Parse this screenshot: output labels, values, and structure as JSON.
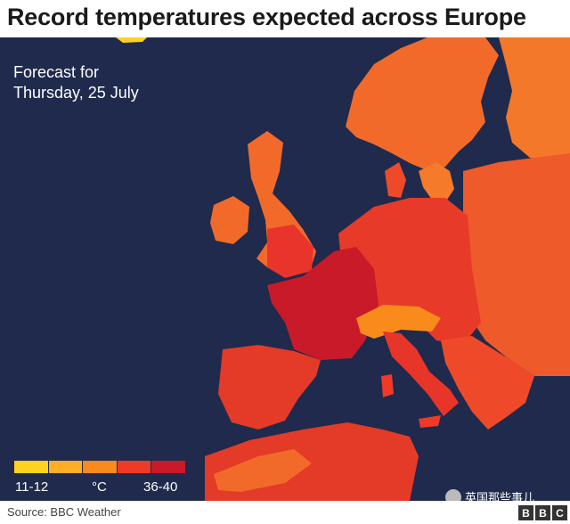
{
  "title": "Record temperatures expected across Europe",
  "forecast": {
    "line1": "Forecast for",
    "line2": "Thursday, 25 July"
  },
  "legend": {
    "low_label": "11-12",
    "unit_label": "°C",
    "high_label": "36-40",
    "colors": [
      "#ffd21f",
      "#ffae26",
      "#f98a1c",
      "#ee3a26",
      "#c81a29"
    ]
  },
  "source": "Source: BBC Weather",
  "watermark": "英国那些事儿",
  "logo": {
    "letters": [
      "B",
      "B",
      "C"
    ]
  },
  "colors": {
    "sea": "#1f2a4d",
    "land_hot": "#d7252a",
    "land_very_hot": "#c81a29",
    "land_warm": "#ee3a26",
    "land_mild": "#f26a2a",
    "highlands": "#f98a1c"
  }
}
